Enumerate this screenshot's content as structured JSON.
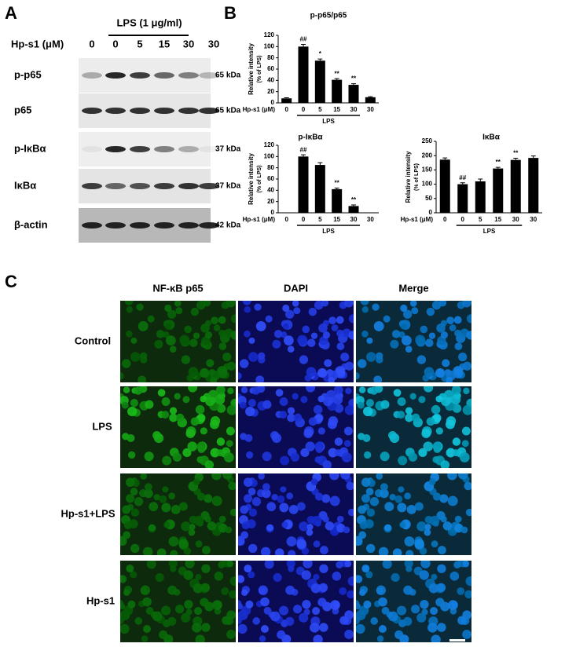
{
  "panel_a": {
    "label": "A",
    "treatment": "LPS (1 μg/ml)",
    "dose_label": "Hp-s1 (μM)",
    "lanes": [
      "0",
      "0",
      "5",
      "15",
      "30",
      "30"
    ],
    "rows": [
      {
        "protein": "p-p65",
        "size": "65 kDa"
      },
      {
        "protein": "p65",
        "size": "65 kDa"
      },
      {
        "protein": "p-IκBα",
        "size": "37 kDa"
      },
      {
        "protein": "IκBα",
        "size": "37 kDa"
      },
      {
        "protein": "β-actin",
        "size": "42 kDa"
      }
    ]
  },
  "panel_b": {
    "label": "B"
  },
  "chart_data": [
    {
      "type": "bar",
      "title": "p-p65/p65",
      "y_label": "Relative intensity",
      "y_sublabel": "(% of LPS)",
      "x_label": "Hp-s1 (μM)",
      "group_label": "LPS",
      "categories": [
        "0",
        "0",
        "5",
        "15",
        "30",
        "30"
      ],
      "values": [
        8,
        100,
        75,
        41,
        32,
        10
      ],
      "errors": [
        1,
        4,
        3,
        2,
        2,
        1
      ],
      "annotations": [
        null,
        "##",
        "*",
        "**",
        "**",
        null
      ],
      "color": "#000000",
      "ylim": [
        0,
        120
      ],
      "yticks": [
        0,
        20,
        40,
        60,
        80,
        100,
        120
      ]
    },
    {
      "type": "bar",
      "title": "p-IκBα",
      "y_label": "Relative intensity",
      "y_sublabel": "(% of LPS)",
      "x_label": "Hp-s1 (μM)",
      "group_label": "LPS",
      "categories": [
        "0",
        "0",
        "5",
        "15",
        "30",
        "30"
      ],
      "values": [
        0,
        100,
        85,
        42,
        12,
        0
      ],
      "errors": [
        0,
        3,
        4,
        2,
        2,
        0
      ],
      "annotations": [
        null,
        "##",
        null,
        "**",
        "**",
        null
      ],
      "color": "#000000",
      "ylim": [
        0,
        120
      ],
      "yticks": [
        0,
        20,
        40,
        60,
        80,
        100,
        120
      ]
    },
    {
      "type": "bar",
      "title": "IκBα",
      "y_label": "Relative intensity",
      "y_sublabel": "(% of LPS)",
      "x_label": "Hp-s1 (μM)",
      "group_label": "LPS",
      "categories": [
        "0",
        "0",
        "5",
        "15",
        "30",
        "30"
      ],
      "values": [
        186,
        100,
        110,
        155,
        185,
        192
      ],
      "errors": [
        6,
        5,
        8,
        4,
        6,
        7
      ],
      "annotations": [
        null,
        "##",
        null,
        "**",
        "**",
        null
      ],
      "color": "#000000",
      "ylim": [
        0,
        250
      ],
      "yticks": [
        0,
        50,
        100,
        150,
        200,
        250
      ]
    }
  ],
  "panel_c": {
    "label": "C",
    "columns": [
      "NF-κB p65",
      "DAPI",
      "Merge"
    ],
    "rows": [
      "Control",
      "LPS",
      "Hp-s1+LPS",
      "Hp-s1"
    ]
  }
}
